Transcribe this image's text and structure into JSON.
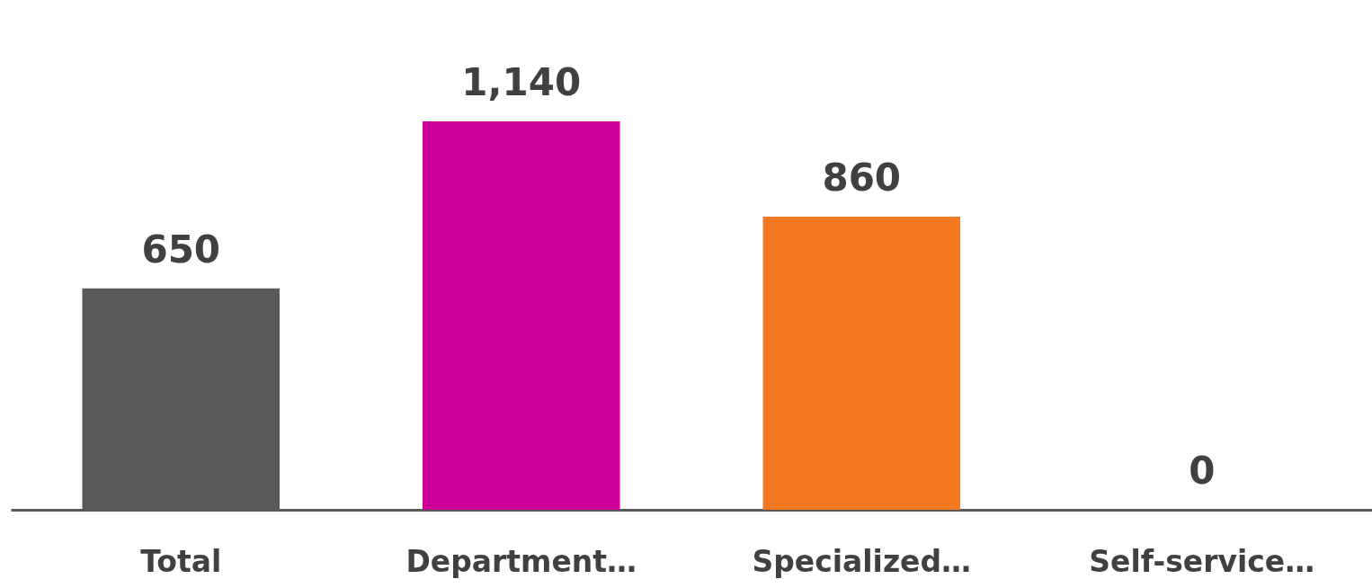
{
  "chart_data": {
    "type": "bar",
    "categories": [
      "Total",
      "Department…",
      "Specialized…",
      "Self-service…"
    ],
    "values": [
      650,
      1140,
      860,
      0
    ],
    "colors": [
      "#595959",
      "#cc0099",
      "#f47920",
      "#00a3e0"
    ],
    "value_labels": [
      "650",
      "1,140",
      "860",
      "0"
    ],
    "grid": false
  }
}
